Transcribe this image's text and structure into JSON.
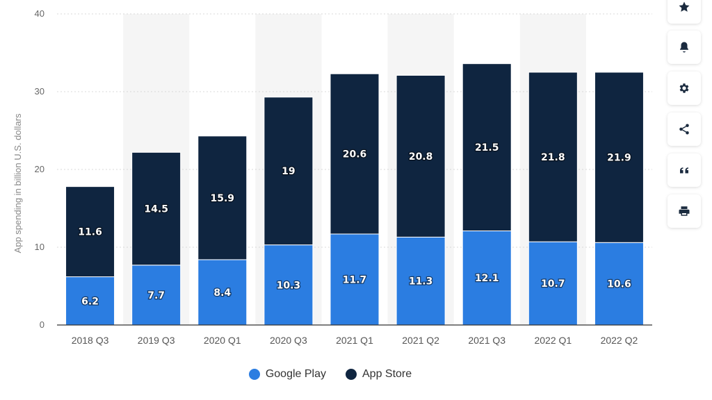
{
  "chart_data": {
    "type": "bar",
    "stacked": true,
    "title": "",
    "xlabel": "",
    "ylabel": "App spending in billion U.S. dollars",
    "ylim": [
      0,
      40
    ],
    "yticks": [
      0,
      10,
      20,
      30,
      40
    ],
    "grid": true,
    "legend_position": "bottom",
    "categories": [
      "2018 Q3",
      "2019 Q3",
      "2020 Q1",
      "2020 Q3",
      "2021 Q1",
      "2021 Q2",
      "2021 Q3",
      "2022 Q1",
      "2022 Q2"
    ],
    "series": [
      {
        "name": "Google Play",
        "color": "#2b7de1",
        "values": [
          6.2,
          7.7,
          8.4,
          10.3,
          11.7,
          11.3,
          12.1,
          10.7,
          10.6
        ]
      },
      {
        "name": "App Store",
        "color": "#0f2540",
        "values": [
          11.6,
          14.5,
          15.9,
          19,
          20.6,
          20.8,
          21.5,
          21.8,
          21.9
        ]
      }
    ]
  },
  "toolbar": {
    "items": [
      {
        "name": "favorite-button",
        "icon": "star-icon"
      },
      {
        "name": "notification-button",
        "icon": "bell-icon"
      },
      {
        "name": "settings-button",
        "icon": "gear-icon"
      },
      {
        "name": "share-button",
        "icon": "share-icon"
      },
      {
        "name": "cite-button",
        "icon": "quote-icon"
      },
      {
        "name": "print-button",
        "icon": "print-icon"
      }
    ]
  }
}
